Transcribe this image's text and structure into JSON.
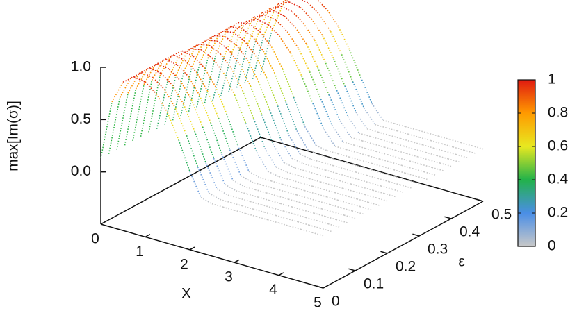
{
  "chart_data": {
    "type": "surface",
    "xlabel": "X",
    "ylabel": "ε",
    "zlabel": "max[Im(σ)]",
    "xlim": [
      0,
      5
    ],
    "ylim": [
      0,
      0.5
    ],
    "zlim": [
      -0.5,
      1
    ],
    "xticks": [
      0,
      1,
      2,
      3,
      4,
      5
    ],
    "yticks": [
      0,
      0.1,
      0.2,
      0.3,
      0.4,
      0.5
    ],
    "zticks": [
      {
        "value": 0,
        "label": "0.0"
      },
      {
        "value": 0.5,
        "label": "0.5"
      },
      {
        "value": 1,
        "label": "1.0"
      }
    ],
    "cblim": [
      0,
      1
    ],
    "cbticks": [
      0,
      0.2,
      0.4,
      0.6,
      0.8,
      1
    ],
    "colormap": [
      "#c8c8c8",
      "#4a8ee6",
      "#22b24a",
      "#e8e820",
      "#ff9a00",
      "#e01a10"
    ],
    "x": [
      0,
      0.25,
      0.5,
      0.75,
      1,
      1.25,
      1.5,
      1.75,
      2,
      2.25,
      2.5,
      2.75,
      3,
      3.25,
      3.5,
      3.75,
      4,
      4.25,
      4.5,
      4.75,
      5
    ],
    "y": [
      0,
      0.025,
      0.05,
      0.075,
      0.1,
      0.125,
      0.15,
      0.175,
      0.2,
      0.225,
      0.25,
      0.275,
      0.3,
      0.325,
      0.35,
      0.375,
      0.4,
      0.425,
      0.45,
      0.475,
      0.5
    ],
    "z": [
      [
        0.13,
        0.7,
        0.92,
        1.0,
        0.98,
        0.9,
        0.75,
        0.52,
        0.25,
        0.03,
        0,
        0,
        0,
        0,
        0,
        0,
        0,
        0,
        0,
        0,
        0
      ],
      [
        0.13,
        0.7,
        0.92,
        1.0,
        0.98,
        0.9,
        0.75,
        0.52,
        0.25,
        0.03,
        0,
        0,
        0,
        0,
        0,
        0,
        0,
        0,
        0,
        0,
        0
      ],
      [
        0.13,
        0.7,
        0.92,
        1.0,
        0.98,
        0.9,
        0.75,
        0.52,
        0.25,
        0.03,
        0,
        0,
        0,
        0,
        0,
        0,
        0,
        0,
        0,
        0,
        0
      ],
      [
        0.13,
        0.7,
        0.92,
        1.0,
        0.98,
        0.9,
        0.75,
        0.52,
        0.25,
        0.03,
        0,
        0,
        0,
        0,
        0,
        0,
        0,
        0,
        0,
        0,
        0
      ],
      [
        0.13,
        0.7,
        0.92,
        1.0,
        0.98,
        0.9,
        0.75,
        0.52,
        0.25,
        0.03,
        0,
        0,
        0,
        0,
        0,
        0,
        0,
        0,
        0,
        0,
        0
      ],
      [
        0.13,
        0.7,
        0.92,
        1.0,
        0.98,
        0.9,
        0.75,
        0.52,
        0.25,
        0.03,
        0,
        0,
        0,
        0,
        0,
        0,
        0,
        0,
        0,
        0,
        0
      ],
      [
        0.13,
        0.7,
        0.92,
        1.0,
        0.98,
        0.9,
        0.75,
        0.52,
        0.25,
        0.03,
        0,
        0,
        0,
        0,
        0,
        0,
        0,
        0,
        0,
        0,
        0
      ],
      [
        0.12,
        0.62,
        0.88,
        0.98,
        1.0,
        0.95,
        0.84,
        0.66,
        0.42,
        0.17,
        0.02,
        0,
        0,
        0,
        0,
        0,
        0,
        0,
        0,
        0,
        0
      ],
      [
        0.12,
        0.62,
        0.88,
        0.98,
        1.0,
        0.95,
        0.84,
        0.66,
        0.42,
        0.17,
        0.02,
        0,
        0,
        0,
        0,
        0,
        0,
        0,
        0,
        0,
        0
      ],
      [
        0.12,
        0.62,
        0.88,
        0.98,
        1.0,
        0.95,
        0.84,
        0.66,
        0.42,
        0.17,
        0.02,
        0,
        0,
        0,
        0,
        0,
        0,
        0,
        0,
        0,
        0
      ],
      [
        0.12,
        0.62,
        0.88,
        0.98,
        1.0,
        0.95,
        0.84,
        0.66,
        0.42,
        0.17,
        0.02,
        0,
        0,
        0,
        0,
        0,
        0,
        0,
        0,
        0,
        0
      ],
      [
        0.12,
        0.62,
        0.88,
        0.98,
        1.0,
        0.95,
        0.84,
        0.66,
        0.42,
        0.17,
        0.02,
        0,
        0,
        0,
        0,
        0,
        0,
        0,
        0,
        0,
        0
      ],
      [
        0.12,
        0.62,
        0.88,
        0.98,
        1.0,
        0.95,
        0.84,
        0.66,
        0.42,
        0.17,
        0.02,
        0,
        0,
        0,
        0,
        0,
        0,
        0,
        0,
        0,
        0
      ],
      [
        0.12,
        0.62,
        0.88,
        0.98,
        1.0,
        0.95,
        0.84,
        0.66,
        0.42,
        0.17,
        0.02,
        0,
        0,
        0,
        0,
        0,
        0,
        0,
        0,
        0,
        0
      ],
      [
        0.1,
        0.55,
        0.83,
        0.95,
        1.0,
        0.98,
        0.9,
        0.77,
        0.58,
        0.35,
        0.13,
        0,
        0,
        0,
        0,
        0,
        0,
        0,
        0,
        0,
        0
      ],
      [
        0.1,
        0.55,
        0.83,
        0.95,
        1.0,
        0.98,
        0.9,
        0.77,
        0.58,
        0.35,
        0.13,
        0,
        0,
        0,
        0,
        0,
        0,
        0,
        0,
        0,
        0
      ],
      [
        0.1,
        0.55,
        0.83,
        0.95,
        1.0,
        0.98,
        0.9,
        0.77,
        0.58,
        0.35,
        0.13,
        0,
        0,
        0,
        0,
        0,
        0,
        0,
        0,
        0,
        0
      ],
      [
        0.1,
        0.55,
        0.83,
        0.95,
        1.0,
        0.98,
        0.9,
        0.77,
        0.58,
        0.35,
        0.13,
        0,
        0,
        0,
        0,
        0,
        0,
        0,
        0,
        0,
        0
      ],
      [
        0.1,
        0.55,
        0.83,
        0.95,
        1.0,
        0.98,
        0.9,
        0.77,
        0.58,
        0.35,
        0.13,
        0,
        0,
        0,
        0,
        0,
        0,
        0,
        0,
        0,
        0
      ],
      [
        0.1,
        0.55,
        0.83,
        0.95,
        1.0,
        0.98,
        0.9,
        0.77,
        0.58,
        0.35,
        0.13,
        0,
        0,
        0,
        0,
        0,
        0,
        0,
        0,
        0,
        0
      ],
      [
        0.1,
        0.55,
        0.83,
        0.95,
        1.0,
        0.98,
        0.9,
        0.77,
        0.58,
        0.35,
        0.13,
        0,
        0,
        0,
        0,
        0,
        0,
        0,
        0,
        0,
        0
      ]
    ]
  }
}
